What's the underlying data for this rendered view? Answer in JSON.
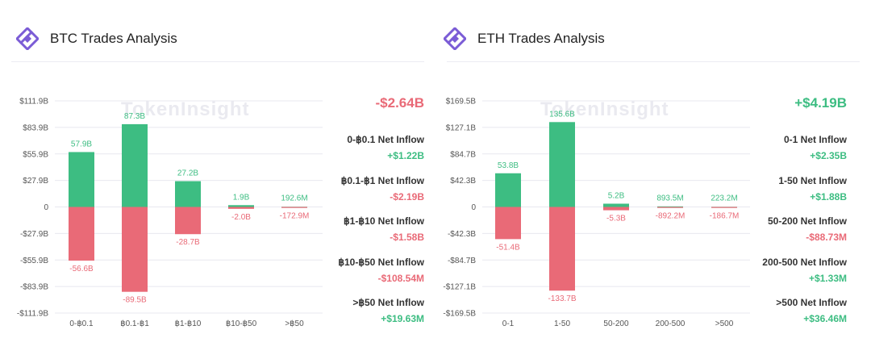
{
  "colors": {
    "positive": "#3dbd82",
    "negative": "#e96a77",
    "axis_text": "#555",
    "grid": "#e8e8ef",
    "logo": "#7b5cd6",
    "watermark": "#e6e6ee"
  },
  "icons": {
    "logo": "tokeninsight-logo-icon"
  },
  "watermark": "TokenInsight",
  "btc": {
    "title": "BTC Trades Analysis",
    "net_total": "-$2.64B",
    "net_total_sign": "negative",
    "inflows": [
      {
        "label": "0-฿0.1 Net Inflow",
        "value": "+$1.22B",
        "sign": "positive"
      },
      {
        "label": "฿0.1-฿1 Net Inflow",
        "value": "-$2.19B",
        "sign": "negative"
      },
      {
        "label": "฿1-฿10 Net Inflow",
        "value": "-$1.58B",
        "sign": "negative"
      },
      {
        "label": "฿10-฿50 Net Inflow",
        "value": "-$108.54M",
        "sign": "negative"
      },
      {
        "label": ">฿50 Net Inflow",
        "value": "+$19.63M",
        "sign": "positive"
      }
    ]
  },
  "eth": {
    "title": "ETH Trades Analysis",
    "net_total": "+$4.19B",
    "net_total_sign": "positive",
    "inflows": [
      {
        "label": "0-1 Net Inflow",
        "value": "+$2.35B",
        "sign": "positive"
      },
      {
        "label": "1-50 Net Inflow",
        "value": "+$1.88B",
        "sign": "positive"
      },
      {
        "label": "50-200 Net Inflow",
        "value": "-$88.73M",
        "sign": "negative"
      },
      {
        "label": "200-500 Net Inflow",
        "value": "+$1.33M",
        "sign": "positive"
      },
      {
        "label": ">500 Net Inflow",
        "value": "+$36.46M",
        "sign": "positive"
      }
    ]
  },
  "chart_data": [
    {
      "type": "bar",
      "title": "BTC Trades Analysis",
      "categories": [
        "0-฿0.1",
        "฿0.1-฿1",
        "฿1-฿10",
        "฿10-฿50",
        ">฿50"
      ],
      "series": [
        {
          "values": [
            57.9,
            87.3,
            27.2,
            1.9,
            0.1926
          ],
          "labels": [
            "57.9B",
            "87.3B",
            "27.2B",
            "1.9B",
            "192.6M"
          ]
        },
        {
          "values": [
            -56.6,
            -89.5,
            -28.7,
            -2.0,
            -0.1729
          ],
          "labels": [
            "-56.6B",
            "-89.5B",
            "-28.7B",
            "-2.0B",
            "-172.9M"
          ]
        }
      ],
      "yticks": [
        "$111.9B",
        "$83.9B",
        "$55.9B",
        "$27.9B",
        "0",
        "-$27.9B",
        "-$55.9B",
        "-$83.9B",
        "-$111.9B"
      ],
      "ylim": [
        -111.9,
        111.9
      ],
      "grid": true
    },
    {
      "type": "bar",
      "title": "ETH Trades Analysis",
      "categories": [
        "0-1",
        "1-50",
        "50-200",
        "200-500",
        ">500"
      ],
      "series": [
        {
          "values": [
            53.8,
            135.6,
            5.2,
            0.8935,
            0.2232
          ],
          "labels": [
            "53.8B",
            "135.6B",
            "5.2B",
            "893.5M",
            "223.2M"
          ]
        },
        {
          "values": [
            -51.4,
            -133.7,
            -5.3,
            -0.8922,
            -0.1867
          ],
          "labels": [
            "-51.4B",
            "-133.7B",
            "-5.3B",
            "-892.2M",
            "-186.7M"
          ]
        }
      ],
      "yticks": [
        "$169.5B",
        "$127.1B",
        "$84.7B",
        "$42.3B",
        "0",
        "-$42.3B",
        "-$84.7B",
        "-$127.1B",
        "-$169.5B"
      ],
      "ylim": [
        -169.5,
        169.5
      ],
      "grid": true
    }
  ]
}
